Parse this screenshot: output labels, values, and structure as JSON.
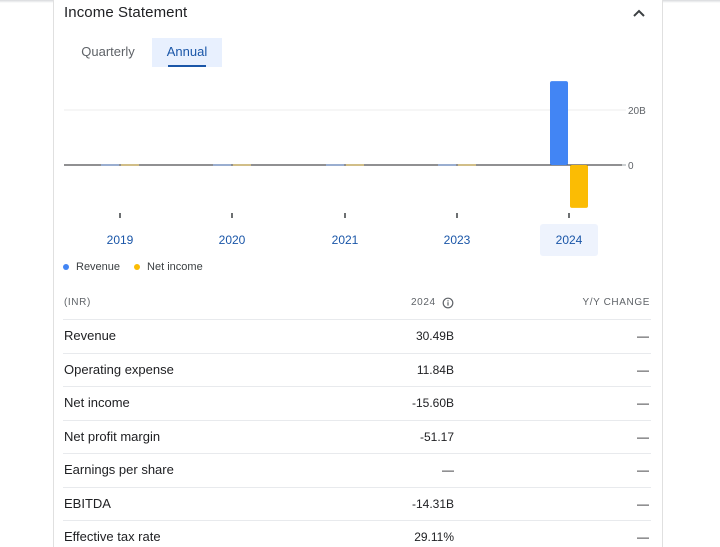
{
  "section": {
    "title": "Income Statement",
    "collapse_icon": "chevron-up-icon"
  },
  "tabs": [
    {
      "label": "Quarterly",
      "selected": false
    },
    {
      "label": "Annual",
      "selected": true
    }
  ],
  "chart_data": {
    "type": "bar",
    "categories": [
      "2019",
      "2020",
      "2021",
      "2023",
      "2024"
    ],
    "series": [
      {
        "name": "Revenue",
        "color": "#4285f4",
        "values": [
          0,
          0,
          0,
          0,
          30.49
        ]
      },
      {
        "name": "Net income",
        "color": "#fbbc04",
        "values": [
          0,
          0,
          0,
          0,
          -15.6
        ]
      }
    ],
    "y_ticks": [
      {
        "value": 20,
        "label": "20B"
      },
      {
        "value": 0,
        "label": "0"
      }
    ],
    "units": "B",
    "highlighted_category": "2024",
    "legend_position": "bottom-left"
  },
  "legend": [
    {
      "label": "Revenue",
      "color": "#4285f4"
    },
    {
      "label": "Net income",
      "color": "#fbbc04"
    }
  ],
  "table": {
    "header": {
      "label": "(INR)",
      "year": "2024",
      "change": "Y/Y CHANGE"
    },
    "rows": [
      {
        "label": "Revenue",
        "value": "30.49B",
        "change": "—"
      },
      {
        "label": "Operating expense",
        "value": "11.84B",
        "change": "—"
      },
      {
        "label": "Net income",
        "value": "-15.60B",
        "change": "—"
      },
      {
        "label": "Net profit margin",
        "value": "-51.17",
        "change": "—"
      },
      {
        "label": "Earnings per share",
        "value": "—",
        "change": "—"
      },
      {
        "label": "EBITDA",
        "value": "-14.31B",
        "change": "—"
      },
      {
        "label": "Effective tax rate",
        "value": "29.11%",
        "change": "—"
      }
    ]
  }
}
